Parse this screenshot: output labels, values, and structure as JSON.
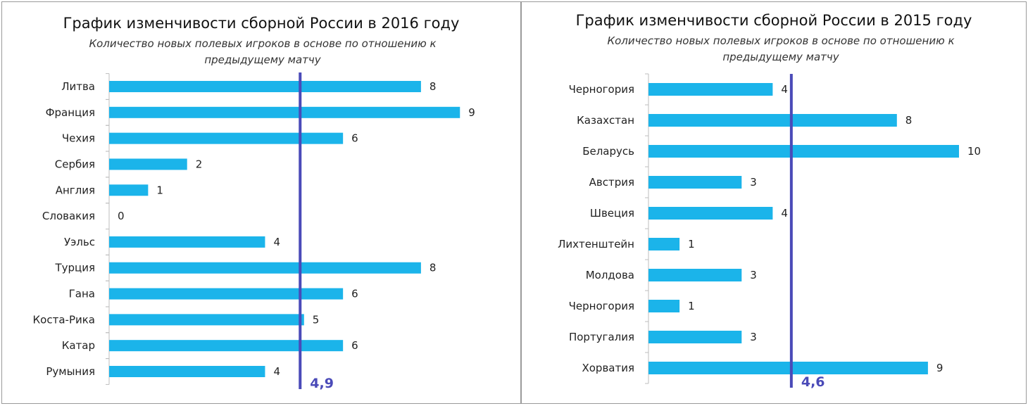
{
  "chart_data": [
    {
      "type": "bar",
      "orientation": "horizontal",
      "title": "График изменчивости сборной России в 2016 году",
      "subtitle": "Количество новых полевых игроков в основе по отношению к предыдущему матчу",
      "categories": [
        "Литва",
        "Франция",
        "Чехия",
        "Сербия",
        "Англия",
        "Словакия",
        "Уэльс",
        "Турция",
        "Гана",
        "Коста-Рика",
        "Катар",
        "Румыния"
      ],
      "values": [
        8,
        9,
        6,
        2,
        1,
        0,
        4,
        8,
        6,
        5,
        6,
        4
      ],
      "average": 4.9,
      "average_label": "4,9",
      "xlim": [
        0,
        9.7
      ],
      "bar_color": "#1bb4ea",
      "average_line_color": "#4a4ab8"
    },
    {
      "type": "bar",
      "orientation": "horizontal",
      "title": "График изменчивости сборной России в 2015 году",
      "subtitle": "Количество новых полевых игроков в основе по отношению к предыдущему матчу",
      "categories": [
        "Черногория",
        "Казахстан",
        "Беларусь",
        "Австрия",
        "Швеция",
        "Лихтенштейн",
        "Молдова",
        "Черногория",
        "Португалия",
        "Хорватия"
      ],
      "values": [
        4,
        8,
        10,
        3,
        4,
        1,
        3,
        1,
        3,
        9
      ],
      "average": 4.6,
      "average_label": "4,6",
      "xlim": [
        0,
        10
      ],
      "bar_color": "#1bb4ea",
      "average_line_color": "#4a4ab8"
    }
  ]
}
